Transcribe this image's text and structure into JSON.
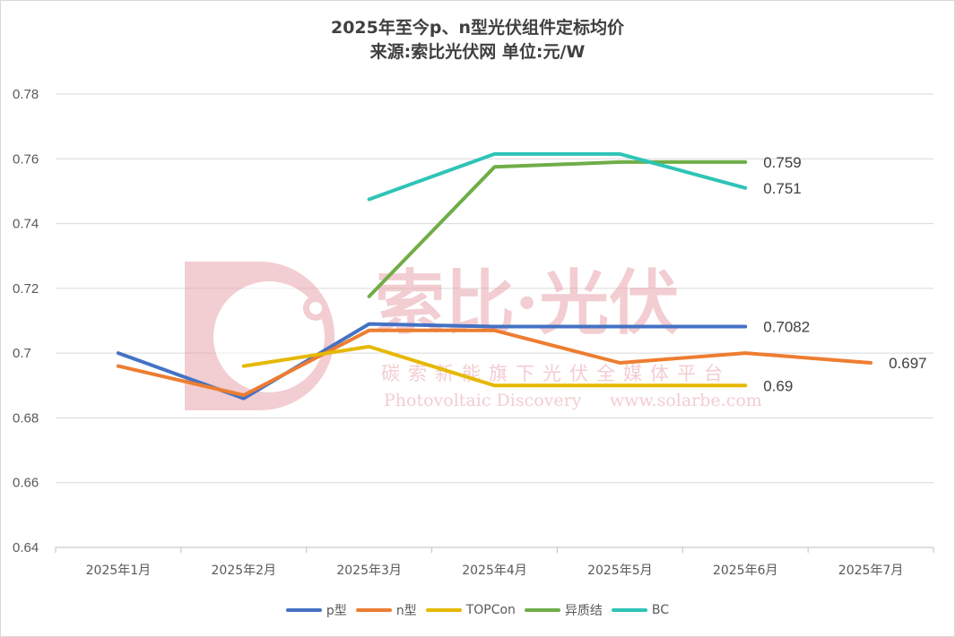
{
  "chart_data": {
    "type": "line",
    "title": "2025年至今p、n型光伏组件定标均价",
    "subtitle": "来源:索比光伏网 单位:元/W",
    "categories": [
      "2025年1月",
      "2025年2月",
      "2025年3月",
      "2025年4月",
      "2025年5月",
      "2025年6月",
      "2025年7月"
    ],
    "ylim": [
      0.64,
      0.78
    ],
    "yticks": [
      "0.64",
      "0.66",
      "0.68",
      "0.7",
      "0.72",
      "0.74",
      "0.76",
      "0.78"
    ],
    "grid": true,
    "legend": "bottom",
    "series": [
      {
        "name": "p型",
        "color": "#4472C4",
        "values": [
          0.7,
          0.686,
          0.709,
          0.7082,
          0.7082,
          0.7082,
          null
        ],
        "end_label": "0.7082"
      },
      {
        "name": "n型",
        "color": "#ED7D31",
        "values": [
          0.696,
          0.687,
          0.707,
          0.707,
          0.697,
          0.7,
          0.697
        ],
        "end_label": "0.697"
      },
      {
        "name": "TOPCon",
        "color": "#E6B800",
        "values": [
          null,
          0.696,
          0.702,
          0.69,
          0.69,
          0.69,
          null
        ],
        "end_label": "0.69"
      },
      {
        "name": "异质结",
        "color": "#70AD47",
        "values": [
          null,
          null,
          0.7175,
          0.7575,
          0.759,
          0.759,
          null
        ],
        "end_label": "0.759"
      },
      {
        "name": "BC",
        "color": "#2EC4B6",
        "values": [
          null,
          null,
          0.7475,
          0.7615,
          0.7615,
          0.751,
          null
        ],
        "end_label": "0.751"
      }
    ]
  },
  "watermark": {
    "brand": "索比·光伏",
    "tagline": "碳索新能旗下光伏全媒体平台",
    "english": "Photovoltaic Discovery",
    "site": "www.solarbe.com",
    "color": "#e8a5ad"
  }
}
